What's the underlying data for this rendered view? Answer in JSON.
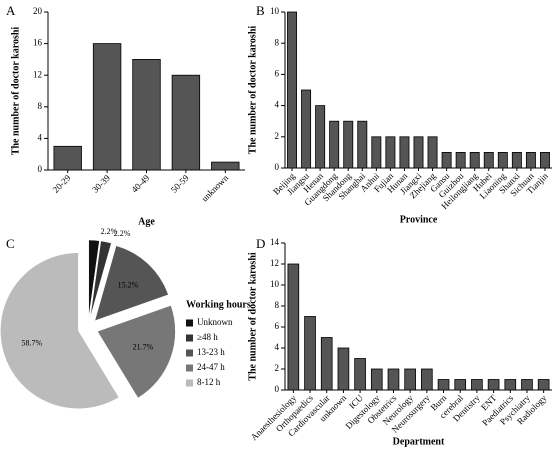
{
  "chart_data": [
    {
      "type": "bar",
      "panel_label": "A",
      "ylabel": "The number of doctor karoshi",
      "xlabel": "Age",
      "categories": [
        "20-29",
        "30-39",
        "40-49",
        "50-59",
        "unknown"
      ],
      "values": [
        3,
        16,
        14,
        12,
        1
      ],
      "color": "#555555",
      "ylim": [
        0,
        20
      ],
      "yticks": [
        0,
        4,
        8,
        12,
        16,
        20
      ]
    },
    {
      "type": "bar",
      "panel_label": "B",
      "ylabel": "The number of doctor karoshi",
      "xlabel": "Province",
      "categories": [
        "Beijing",
        "Jiangsu",
        "Henan",
        "Guangdong",
        "Shandong",
        "Shanghai",
        "Anhui",
        "Fujian",
        "Hunan",
        "Jiangxi",
        "Zhejiang",
        "Gansu",
        "Guizhou",
        "Heilongjiang",
        "Hubei",
        "Liaoning",
        "Shanxi",
        "Sichuan",
        "Tianjin"
      ],
      "values": [
        10,
        5,
        4,
        3,
        3,
        3,
        2,
        2,
        2,
        2,
        2,
        1,
        1,
        1,
        1,
        1,
        1,
        1,
        1
      ],
      "color": "#555555",
      "ylim": [
        0,
        10
      ],
      "yticks": [
        0,
        2,
        4,
        6,
        8,
        10
      ]
    },
    {
      "type": "pie",
      "panel_label": "C",
      "legend_title": "Working hours",
      "categories": [
        "Unknown",
        "≥48 h",
        "13-23 h",
        "24-47 h",
        "8-12 h"
      ],
      "values": [
        2.2,
        2.2,
        15.2,
        21.7,
        58.7
      ],
      "value_labels": [
        "2.2%",
        "2.2%",
        "15.2%",
        "21.7%",
        "58.7%"
      ],
      "colors": [
        "#111111",
        "#333333",
        "#555555",
        "#777777",
        "#bbbbbb"
      ]
    },
    {
      "type": "bar",
      "panel_label": "D",
      "ylabel": "The number of doctor karoshi",
      "xlabel": "Department",
      "categories": [
        "Anaesthesiology",
        "Orthopaedics",
        "Cardiovascular",
        "unknown",
        "ICU",
        "Digestology",
        "Obstetrics",
        "Neurology",
        "Neurosurgery",
        "Burn",
        "cerebral",
        "Dentistry",
        "ENT",
        "Paediatrics",
        "Psychiatry",
        "Radiology"
      ],
      "values": [
        12,
        7,
        5,
        4,
        3,
        2,
        2,
        2,
        2,
        1,
        1,
        1,
        1,
        1,
        1,
        1
      ],
      "color": "#555555",
      "ylim": [
        0,
        14
      ],
      "yticks": [
        0,
        2,
        4,
        6,
        8,
        10,
        12,
        14
      ]
    }
  ]
}
